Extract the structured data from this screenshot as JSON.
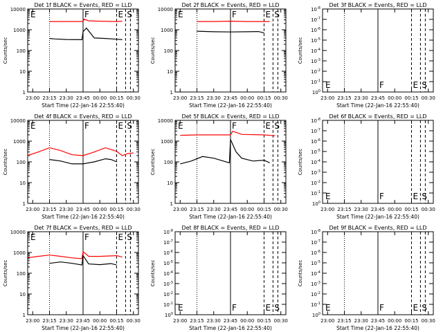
{
  "chart_data": [
    {
      "type": "line",
      "title": "Det 1f BLACK = Events, RED = LLD",
      "ylabel": "Counts/sec",
      "xlabel": "Start Time (22-Jan-16 22:55:40)",
      "yscale": "log",
      "ylim": [
        1,
        10000
      ],
      "xlim": [
        "23:00",
        "00:30"
      ],
      "xticks": [
        "23:00",
        "23:15",
        "23:30",
        "23:45",
        "00:00",
        "00:15",
        "00:30"
      ],
      "yticks": [
        "1",
        "10",
        "100",
        "1000",
        "10000"
      ],
      "markers": [
        {
          "label": "E",
          "time": "22:55"
        },
        {
          "label": "F",
          "time": "23:45"
        },
        {
          "label": "E",
          "time": "00:15"
        },
        {
          "label": "S",
          "time": "00:23"
        }
      ],
      "series": [
        {
          "color": "#ff0000",
          "x": [
            "23:15",
            "23:30",
            "23:45",
            "23:46",
            "23:50",
            "00:00",
            "00:15",
            "00:20"
          ],
          "values": [
            2500,
            2500,
            2500,
            3200,
            2700,
            2600,
            2500,
            2600
          ]
        },
        {
          "color": "#000000",
          "x": [
            "23:15",
            "23:20",
            "23:30",
            "23:44",
            "23:45",
            "23:48",
            "23:55",
            "00:05",
            "00:15",
            "00:20"
          ],
          "values": [
            380,
            360,
            340,
            330,
            800,
            1200,
            400,
            380,
            350,
            330
          ]
        }
      ]
    },
    {
      "type": "line",
      "title": "Det 2f BLACK = Events, RED = LLD",
      "ylabel": "Counts/sec",
      "xlabel": "Start Time (22-Jan-16 22:55:40)",
      "yscale": "log",
      "ylim": [
        1,
        10000
      ],
      "xlim": [
        "23:00",
        "00:30"
      ],
      "xticks": [
        "23:00",
        "23:15",
        "23:30",
        "23:45",
        "00:00",
        "00:15",
        "00:30"
      ],
      "yticks": [
        "1",
        "10",
        "100",
        "1000",
        "10000"
      ],
      "markers": [
        {
          "label": "E",
          "time": "22:55"
        },
        {
          "label": "F",
          "time": "23:45"
        },
        {
          "label": "E",
          "time": "00:15"
        },
        {
          "label": "S",
          "time": "00:23"
        }
      ],
      "series": [
        {
          "color": "#ff0000",
          "x": [
            "23:15",
            "23:30",
            "23:45",
            "00:00",
            "00:15",
            "00:20"
          ],
          "values": [
            2500,
            2500,
            2600,
            2500,
            2500,
            2500
          ]
        },
        {
          "color": "#000000",
          "x": [
            "23:15",
            "23:30",
            "23:45",
            "00:00",
            "00:10",
            "00:15"
          ],
          "values": [
            850,
            800,
            780,
            800,
            820,
            700
          ]
        }
      ]
    },
    {
      "type": "line",
      "title": "Det 3f BLACK = Events, RED = LLD",
      "ylabel": "Counts/sec",
      "xlabel": "Start Time (22-Jan-16 22:55:40)",
      "yscale": "log",
      "ylim": [
        1,
        1e-08
      ],
      "xlim": [
        "23:00",
        "00:30"
      ],
      "xticks": [
        "23:00",
        "23:15",
        "23:30",
        "23:45",
        "00:00",
        "00:15",
        "00:30"
      ],
      "yticks": [
        "10^0",
        "10^-1",
        "10^-2",
        "10^-3",
        "10^-4",
        "10^-5",
        "10^-6",
        "10^-7",
        "10^-8"
      ],
      "markers": [
        {
          "label": "E",
          "time": "22:55"
        },
        {
          "label": "F",
          "time": "23:45"
        },
        {
          "label": "E",
          "time": "00:15"
        },
        {
          "label": "S",
          "time": "00:23"
        }
      ],
      "series": []
    },
    {
      "type": "line",
      "title": "Det 4f BLACK = Events, RED = LLD",
      "ylabel": "Counts/sec",
      "xlabel": "Start Time (22-Jan-16 22:55:40)",
      "yscale": "log",
      "ylim": [
        1,
        10000
      ],
      "xlim": [
        "23:00",
        "00:30"
      ],
      "xticks": [
        "23:00",
        "23:15",
        "23:30",
        "23:45",
        "00:00",
        "00:15",
        "00:30"
      ],
      "yticks": [
        "1",
        "10",
        "100",
        "1000",
        "10000"
      ],
      "markers": [
        {
          "label": "E",
          "time": "22:55"
        },
        {
          "label": "F",
          "time": "23:45"
        },
        {
          "label": "E",
          "time": "00:15"
        },
        {
          "label": "S",
          "time": "00:23"
        }
      ],
      "series": [
        {
          "color": "#ff0000",
          "x": [
            "22:55",
            "23:05",
            "23:15",
            "23:25",
            "23:35",
            "23:45",
            "23:55",
            "00:05",
            "00:15",
            "00:20",
            "00:25",
            "00:30"
          ],
          "values": [
            200,
            300,
            480,
            350,
            220,
            200,
            300,
            480,
            320,
            200,
            250,
            270
          ]
        },
        {
          "color": "#000000",
          "x": [
            "23:15",
            "23:25",
            "23:35",
            "23:45",
            "23:55",
            "00:05",
            "00:10",
            "00:15"
          ],
          "values": [
            130,
            110,
            80,
            80,
            100,
            140,
            130,
            100
          ]
        }
      ]
    },
    {
      "type": "line",
      "title": "Det 5f BLACK = Events, RED = LLD",
      "ylabel": "Counts/sec",
      "xlabel": "Start Time (22-Jan-16 22:55:40)",
      "yscale": "log",
      "ylim": [
        1,
        10000
      ],
      "xlim": [
        "23:00",
        "00:30"
      ],
      "xticks": [
        "23:00",
        "23:15",
        "23:30",
        "23:45",
        "00:00",
        "00:15",
        "00:30"
      ],
      "yticks": [
        "1",
        "10",
        "100",
        "1000",
        "10000"
      ],
      "markers": [
        {
          "label": "E",
          "time": "22:55"
        },
        {
          "label": "F",
          "time": "23:45"
        },
        {
          "label": "E",
          "time": "00:15"
        },
        {
          "label": "S",
          "time": "00:23"
        }
      ],
      "series": [
        {
          "color": "#ff0000",
          "x": [
            "23:00",
            "23:15",
            "23:30",
            "23:45",
            "23:47",
            "23:55",
            "00:15",
            "00:25"
          ],
          "values": [
            1900,
            2000,
            2000,
            2000,
            3000,
            2100,
            2000,
            1800
          ]
        },
        {
          "color": "#000000",
          "x": [
            "23:00",
            "23:10",
            "23:20",
            "23:30",
            "23:44",
            "23:45",
            "23:50",
            "23:55",
            "00:05",
            "00:15",
            "00:20"
          ],
          "values": [
            80,
            110,
            180,
            150,
            90,
            1200,
            300,
            150,
            110,
            120,
            90
          ]
        }
      ]
    },
    {
      "type": "line",
      "title": "Det 6f BLACK = Events, RED = LLD",
      "ylabel": "Counts/sec",
      "xlabel": "Start Time (22-Jan-16 22:55:40)",
      "yscale": "log",
      "ylim": [
        1,
        1e-08
      ],
      "xlim": [
        "23:00",
        "00:30"
      ],
      "xticks": [
        "23:00",
        "23:15",
        "23:30",
        "23:45",
        "00:00",
        "00:15",
        "00:30"
      ],
      "yticks": [
        "10^0",
        "10^-1",
        "10^-2",
        "10^-3",
        "10^-4",
        "10^-5",
        "10^-6",
        "10^-7",
        "10^-8"
      ],
      "markers": [
        {
          "label": "E",
          "time": "22:55"
        },
        {
          "label": "F",
          "time": "23:45"
        },
        {
          "label": "E",
          "time": "00:15"
        },
        {
          "label": "S",
          "time": "00:23"
        }
      ],
      "series": []
    },
    {
      "type": "line",
      "title": "Det 7f BLACK = Events, RED = LLD",
      "ylabel": "Counts/sec",
      "xlabel": "Start Time (22-Jan-16 22:55:40)",
      "yscale": "log",
      "ylim": [
        1,
        10000
      ],
      "xlim": [
        "23:00",
        "00:30"
      ],
      "xticks": [
        "23:00",
        "23:15",
        "23:30",
        "23:45",
        "00:00",
        "00:15",
        "00:30"
      ],
      "yticks": [
        "1",
        "10",
        "100",
        "1000",
        "10000"
      ],
      "markers": [
        {
          "label": "E",
          "time": "22:55"
        },
        {
          "label": "F",
          "time": "23:45"
        },
        {
          "label": "E",
          "time": "00:15"
        },
        {
          "label": "S",
          "time": "00:23"
        }
      ],
      "series": [
        {
          "color": "#ff0000",
          "x": [
            "22:55",
            "23:05",
            "23:15",
            "23:25",
            "23:35",
            "23:44",
            "23:45",
            "23:50",
            "00:00",
            "00:15",
            "00:20"
          ],
          "values": [
            550,
            650,
            750,
            650,
            550,
            500,
            1100,
            650,
            650,
            700,
            600
          ]
        },
        {
          "color": "#000000",
          "x": [
            "23:15",
            "23:25",
            "23:35",
            "23:44",
            "23:45",
            "23:50",
            "00:00",
            "00:10",
            "00:15"
          ],
          "values": [
            300,
            350,
            300,
            250,
            700,
            280,
            260,
            290,
            250
          ]
        }
      ]
    },
    {
      "type": "line",
      "title": "Det 8f BLACK = Events, RED = LLD",
      "ylabel": "Counts/sec",
      "xlabel": "Start Time (22-Jan-16 22:55:40)",
      "yscale": "log",
      "ylim": [
        1,
        1e-08
      ],
      "xlim": [
        "23:00",
        "00:30"
      ],
      "xticks": [
        "23:00",
        "23:15",
        "23:30",
        "23:45",
        "00:00",
        "00:15",
        "00:30"
      ],
      "yticks": [
        "10^0",
        "10^-1",
        "10^-2",
        "10^-3",
        "10^-4",
        "10^-5",
        "10^-6",
        "10^-7",
        "10^-8"
      ],
      "markers": [
        {
          "label": "E",
          "time": "22:55"
        },
        {
          "label": "F",
          "time": "23:45"
        },
        {
          "label": "E",
          "time": "00:15"
        },
        {
          "label": "S",
          "time": "00:23"
        }
      ],
      "series": []
    },
    {
      "type": "line",
      "title": "Det 9f BLACK = Events, RED = LLD",
      "ylabel": "Counts/sec",
      "xlabel": "Start Time (22-Jan-16 22:55:40)",
      "yscale": "log",
      "ylim": [
        1,
        1e-08
      ],
      "xlim": [
        "23:00",
        "00:30"
      ],
      "xticks": [
        "23:00",
        "23:15",
        "23:30",
        "23:45",
        "00:00",
        "00:15",
        "00:30"
      ],
      "yticks": [
        "10^0",
        "10^-1",
        "10^-2",
        "10^-3",
        "10^-4",
        "10^-5",
        "10^-6",
        "10^-7",
        "10^-8"
      ],
      "markers": [
        {
          "label": "E",
          "time": "22:55"
        },
        {
          "label": "F",
          "time": "23:45"
        },
        {
          "label": "E",
          "time": "00:15"
        },
        {
          "label": "S",
          "time": "00:23"
        }
      ],
      "series": []
    }
  ]
}
